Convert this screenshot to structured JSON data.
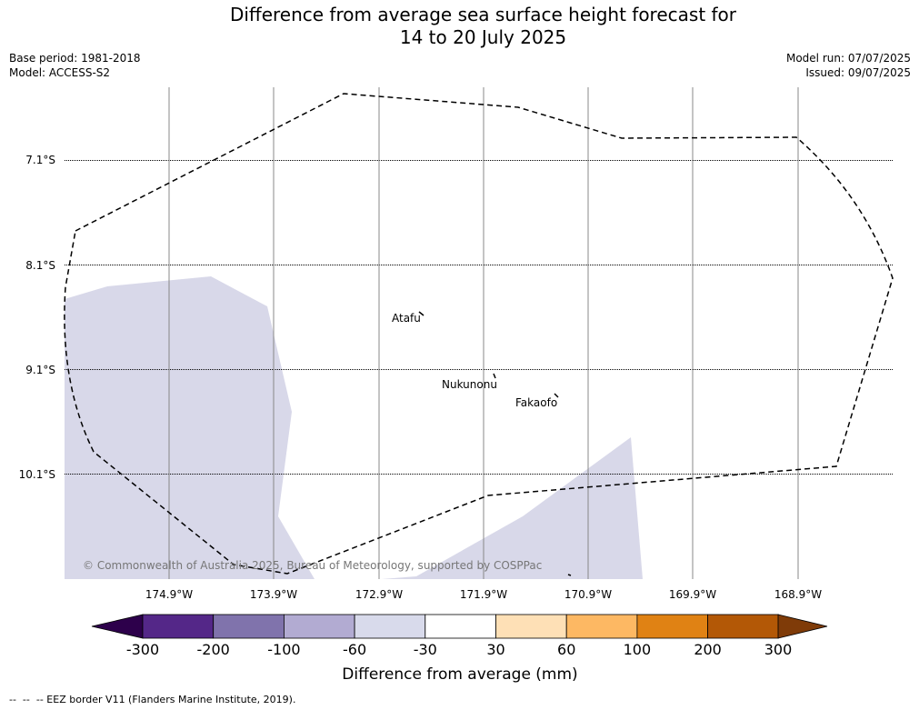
{
  "title": "Difference from average sea surface height forecast for\n14 to 20 July 2025",
  "meta_left": [
    "Base period: 1981-2018",
    "Model: ACCESS-S2"
  ],
  "meta_right": [
    "Model run: 07/07/2025",
    "Issued: 09/07/2025"
  ],
  "map": {
    "lat_labels": [
      "7.1°S",
      "8.1°S",
      "9.1°S",
      "10.1°S"
    ],
    "lon_labels": [
      "174.9°W",
      "173.9°W",
      "172.9°W",
      "171.9°W",
      "170.9°W",
      "169.9°W",
      "168.9°W"
    ],
    "places": [
      "Atafu",
      "Nukunonu",
      "Fakaofo"
    ],
    "copyright": "© Commonwealth of Australia 2025, Bureau of Meteorology, supported by COSPPac",
    "anomaly_fill_color": "#d8d8e9",
    "eez_line_style": "dashed black"
  },
  "colorbar": {
    "label": "Difference from average (mm)",
    "ticks": [
      "-300",
      "-200",
      "-100",
      "-60",
      "-30",
      "30",
      "60",
      "100",
      "200",
      "300"
    ],
    "under_color": "#2d004b",
    "over_color": "#7f3b08",
    "colors": [
      "#542788",
      "#8073ac",
      "#b2abd2",
      "#d8daeb",
      "#ffffff",
      "#fee0b6",
      "#fdb863",
      "#e08214",
      "#b35806"
    ]
  },
  "footer": "--  --  -- EEZ border V11 (Flanders Marine Institute, 2019)."
}
